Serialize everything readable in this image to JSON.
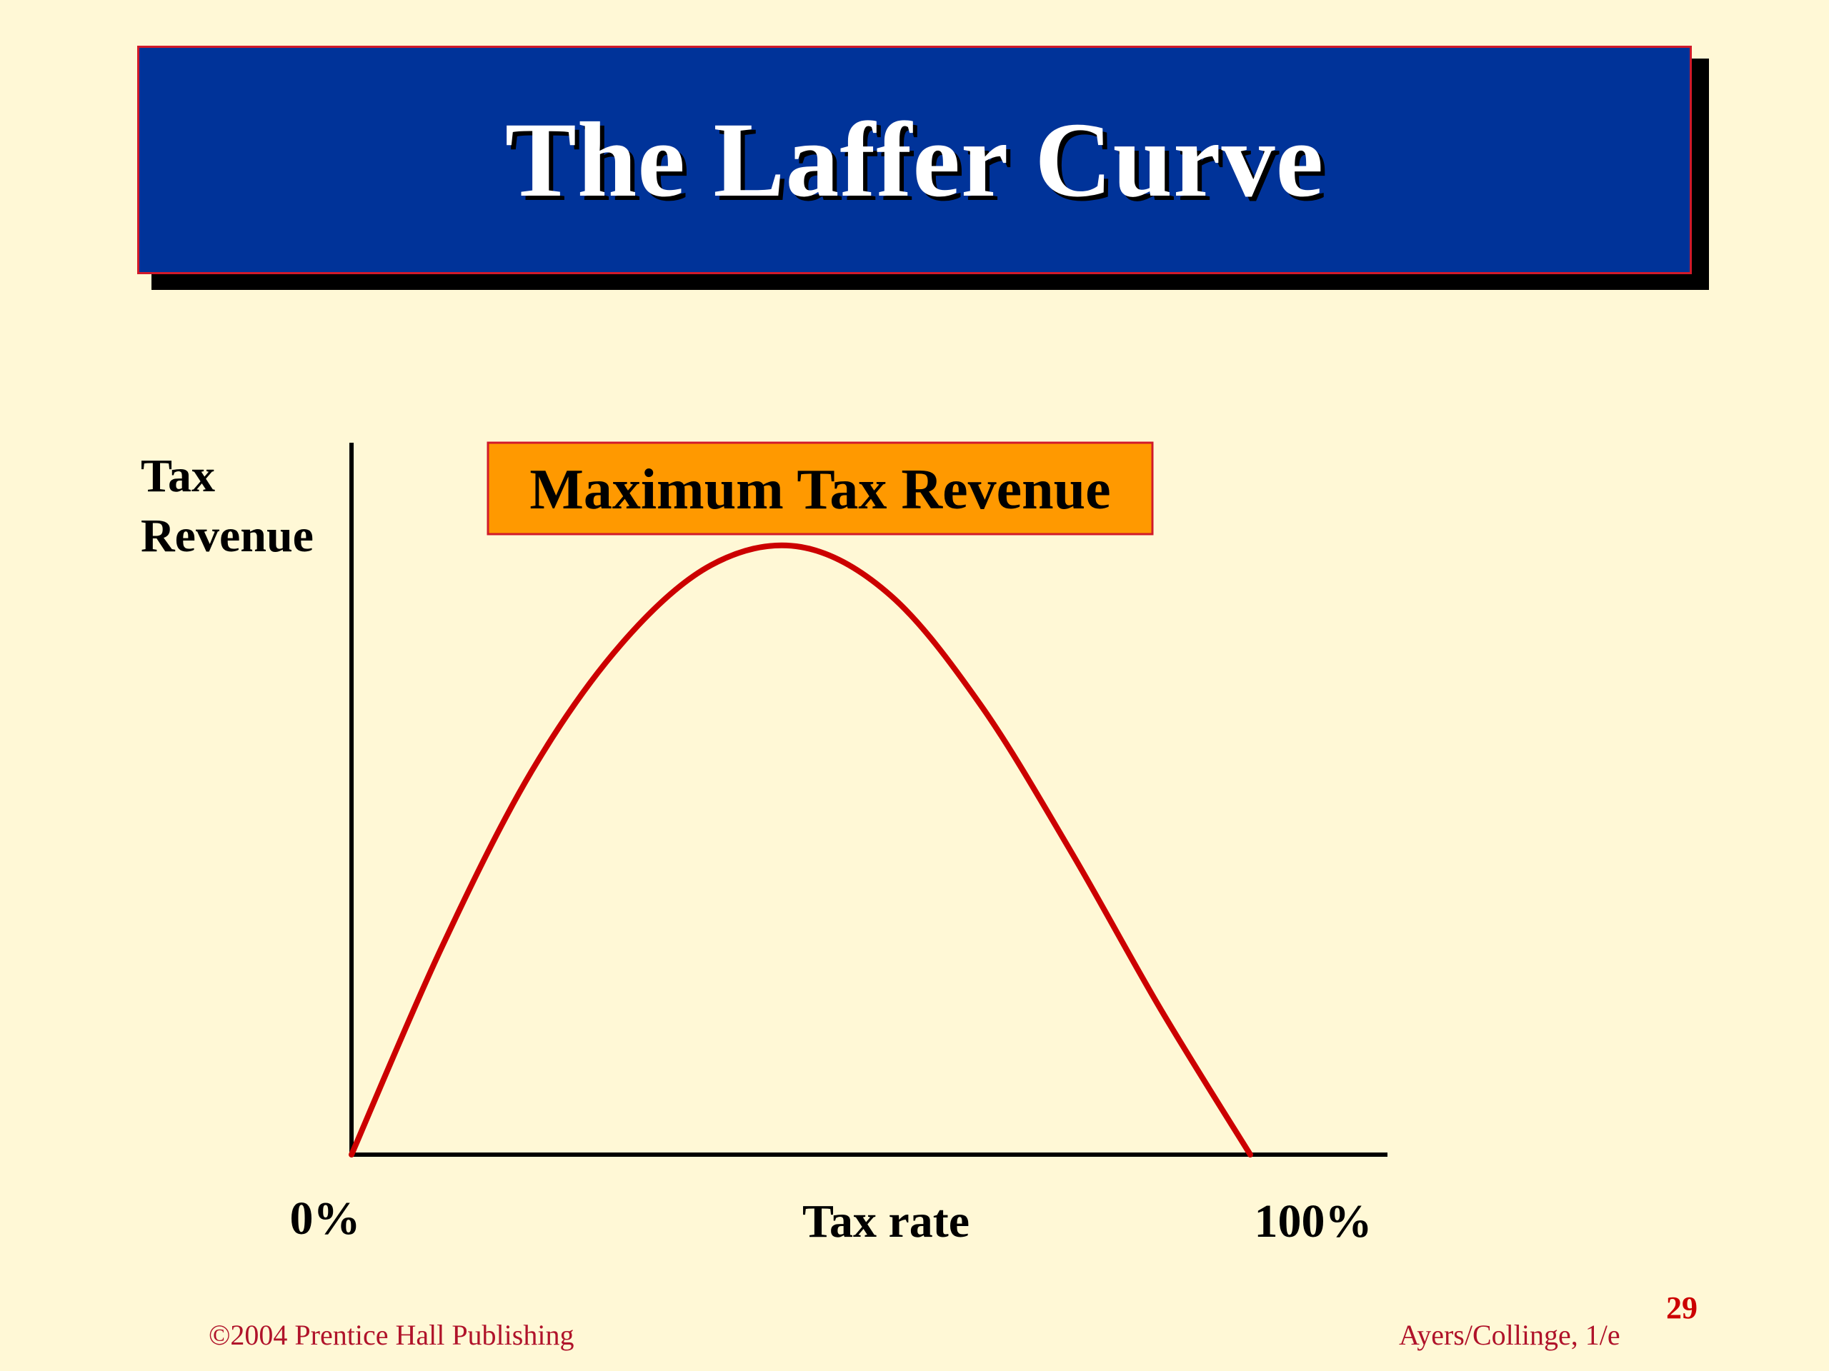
{
  "slide": {
    "title": "The Laffer Curve"
  },
  "chart_data": {
    "type": "line",
    "ylabel_line1": "Tax",
    "ylabel_line2": "Revenue",
    "xlabel": "Tax rate",
    "x_tick_labels": [
      "0%",
      "100%"
    ],
    "annotation": "Maximum Tax Revenue",
    "xlim": [
      0,
      100
    ],
    "ylim": [
      0,
      100
    ],
    "grid": false,
    "series": [
      {
        "color": "#cc0000",
        "x": [
          0,
          10,
          20,
          30,
          40,
          50,
          60,
          70,
          80,
          90,
          100
        ],
        "y": [
          0,
          34,
          63,
          84,
          97,
          100,
          92,
          74,
          50,
          24,
          0
        ]
      }
    ],
    "colors": {
      "curve": "#cc0000",
      "axis": "#000000",
      "annotation_fill": "#ff9900",
      "annotation_border": "#d11a2a"
    }
  },
  "footer": {
    "copyright": "©2004 Prentice Hall Publishing",
    "edition": "Ayers/Collinge, 1/e",
    "page_number": "29"
  },
  "colors": {
    "background": "#fff8d6",
    "title_bar": "#003399",
    "footer_text": "#b0132a",
    "page_number": "#cc0000"
  }
}
